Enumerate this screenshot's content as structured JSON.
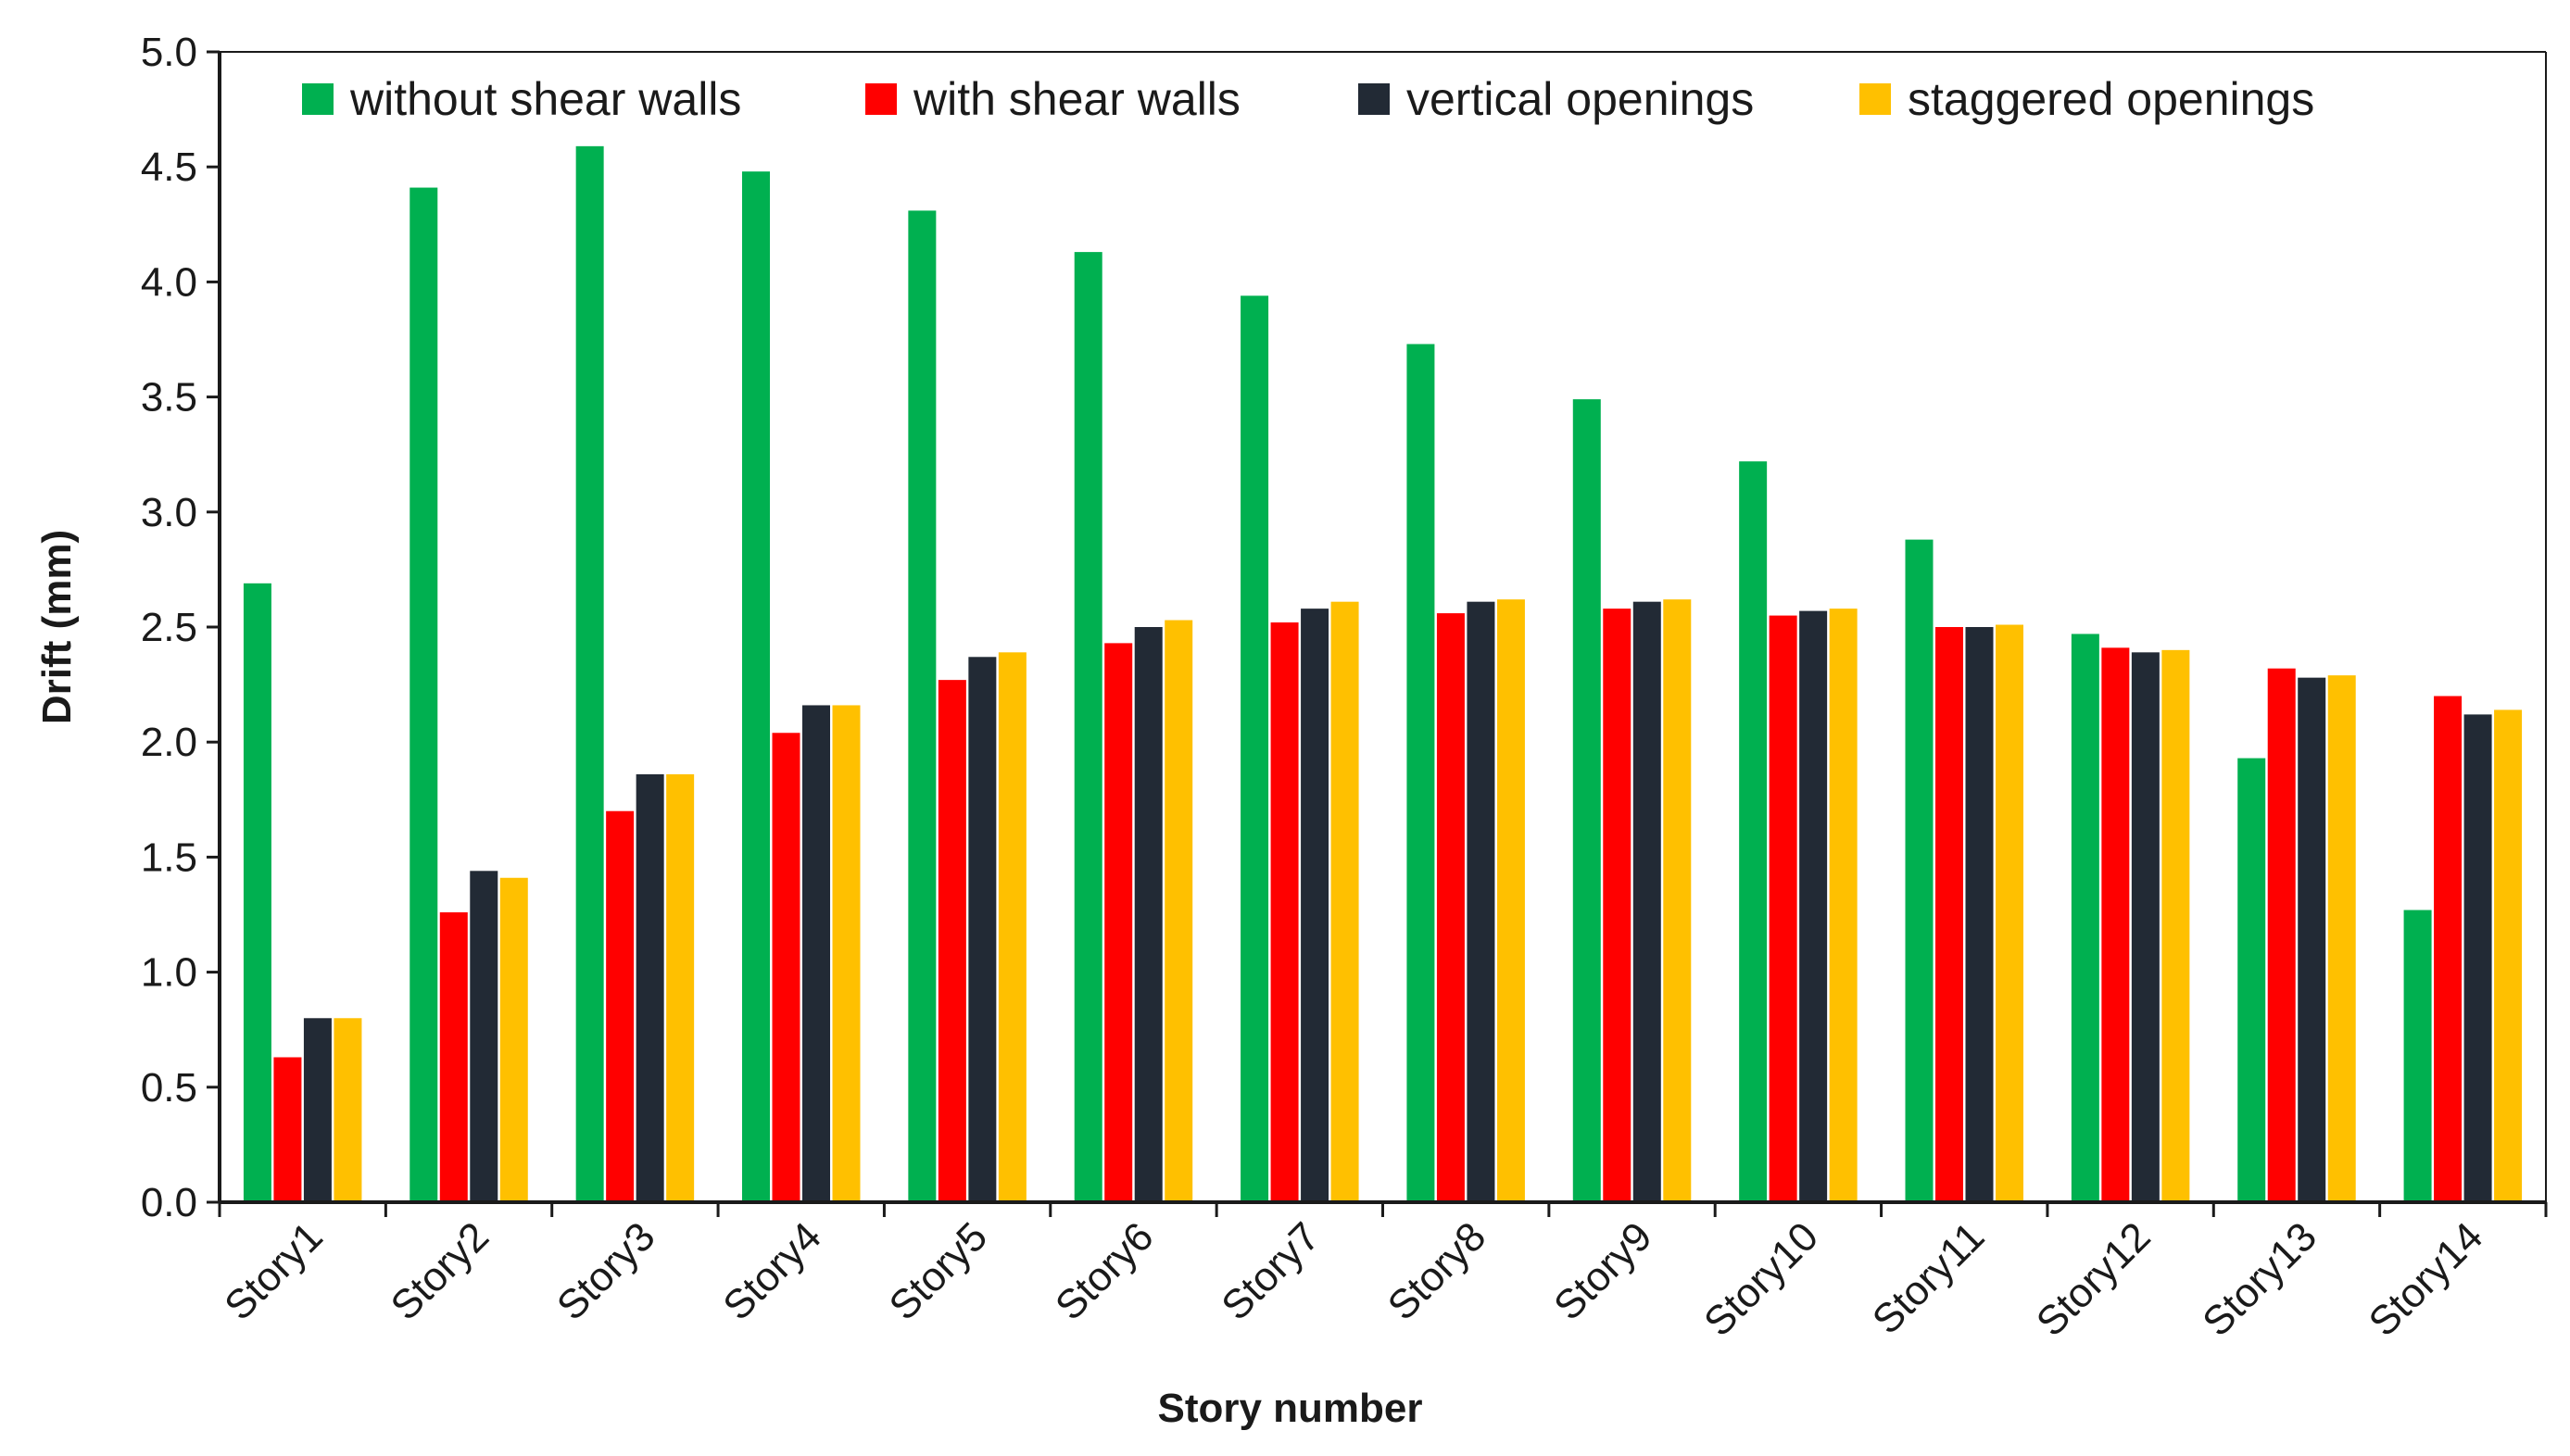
{
  "chart_data": {
    "type": "bar",
    "title": "",
    "xlabel": "Story number",
    "ylabel": "Drift (mm)",
    "ylim": [
      0,
      5.0
    ],
    "ytick_step": 0.5,
    "ytick_labels": [
      "0.0",
      "0.5",
      "1.0",
      "1.5",
      "2.0",
      "2.5",
      "3.0",
      "3.5",
      "4.0",
      "4.5",
      "5.0"
    ],
    "legend_position": "top",
    "grid": false,
    "categories": [
      "Story1",
      "Story2",
      "Story3",
      "Story4",
      "Story5",
      "Story6",
      "Story7",
      "Story8",
      "Story9",
      "Story10",
      "Story11",
      "Story12",
      "Story13",
      "Story14"
    ],
    "series": [
      {
        "name": "without shear walls",
        "color": "#00b050",
        "values": [
          2.69,
          4.41,
          4.59,
          4.48,
          4.31,
          4.13,
          3.94,
          3.73,
          3.49,
          3.22,
          2.88,
          2.47,
          1.93,
          1.27
        ]
      },
      {
        "name": "with shear walls",
        "color": "#ff0000",
        "values": [
          0.63,
          1.26,
          1.7,
          2.04,
          2.27,
          2.43,
          2.52,
          2.56,
          2.58,
          2.55,
          2.5,
          2.41,
          2.32,
          2.2
        ]
      },
      {
        "name": "vertical openings",
        "color": "#222a35",
        "values": [
          0.8,
          1.44,
          1.86,
          2.16,
          2.37,
          2.5,
          2.58,
          2.61,
          2.61,
          2.57,
          2.5,
          2.39,
          2.28,
          2.12
        ]
      },
      {
        "name": "staggered openings",
        "color": "#ffc000",
        "values": [
          0.8,
          1.41,
          1.86,
          2.16,
          2.39,
          2.53,
          2.61,
          2.62,
          2.62,
          2.58,
          2.51,
          2.4,
          2.29,
          2.14
        ]
      }
    ]
  }
}
